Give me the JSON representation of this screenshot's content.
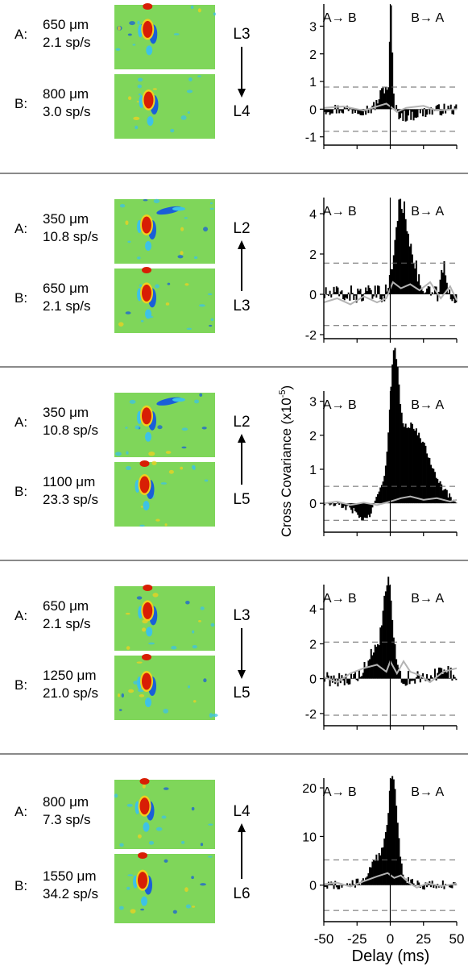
{
  "figure": {
    "ylabel": "Cross Covariance (x10",
    "ylabel_exp": "-5",
    "ylabel_close": ")",
    "xlabel": "Delay (ms)",
    "dir_ab": "A→ B",
    "dir_ba": "B→ A"
  },
  "colors": {
    "rf_background": "#7fd65a",
    "rf_red": "#d81e05",
    "rf_blue": "#1a5fd8",
    "rf_yellow": "#f0d020",
    "rf_cyan": "#3ec2e6",
    "histogram": "#000000",
    "shuffle_line": "#b4b4b4",
    "threshold": "#666666",
    "separator": "#444444"
  },
  "rows": [
    {
      "neuron_a": {
        "tag": "A:",
        "depth": "650 μm",
        "rate": "2.1 sp/s"
      },
      "neuron_b": {
        "tag": "B:",
        "depth": "800 μm",
        "rate": "3.0 sp/s"
      },
      "layer_top": "L3",
      "layer_bottom": "L4",
      "arrow": "down"
    },
    {
      "neuron_a": {
        "tag": "A:",
        "depth": "350 μm",
        "rate": "10.8 sp/s"
      },
      "neuron_b": {
        "tag": "B:",
        "depth": "650 μm",
        "rate": "2.1 sp/s"
      },
      "layer_top": "L2",
      "layer_bottom": "L3",
      "arrow": "up"
    },
    {
      "neuron_a": {
        "tag": "A:",
        "depth": "350 μm",
        "rate": "10.8 sp/s"
      },
      "neuron_b": {
        "tag": "B:",
        "depth": "1100 μm",
        "rate": "23.3 sp/s"
      },
      "layer_top": "L2",
      "layer_bottom": "L5",
      "arrow": "up"
    },
    {
      "neuron_a": {
        "tag": "A:",
        "depth": "650 μm",
        "rate": "2.1 sp/s"
      },
      "neuron_b": {
        "tag": "B:",
        "depth": "1250 μm",
        "rate": "21.0 sp/s"
      },
      "layer_top": "L3",
      "layer_bottom": "L5",
      "arrow": "down"
    },
    {
      "neuron_a": {
        "tag": "A:",
        "depth": "800 μm",
        "rate": "7.3 sp/s"
      },
      "neuron_b": {
        "tag": "B:",
        "depth": "1550 μm",
        "rate": "34.2 sp/s"
      },
      "layer_top": "L4",
      "layer_bottom": "L6",
      "arrow": "up"
    }
  ],
  "chart_data": [
    {
      "type": "bar",
      "xlim": [
        -50,
        50
      ],
      "ylim": [
        -1.3,
        3.8
      ],
      "xticks": [
        -50,
        -25,
        0,
        25,
        50
      ],
      "yticks": [
        -1,
        0,
        1,
        2,
        3
      ],
      "threshold": [
        0.8,
        -0.8
      ],
      "shape": {
        "pos": [
          [
            3.2,
            0.5,
            0.9
          ],
          [
            0.9,
            -3.5,
            4.5
          ]
        ],
        "neg": [
          [
            -0.25,
            10,
            12
          ]
        ],
        "noise": 0.22
      },
      "shuffle": [
        [
          -50,
          0.05
        ],
        [
          -35,
          0.1
        ],
        [
          -20,
          -0.05
        ],
        [
          -10,
          0.1
        ],
        [
          -3,
          0.2
        ],
        [
          0,
          0.1
        ],
        [
          5,
          -0.1
        ],
        [
          12,
          0.05
        ],
        [
          25,
          0.12
        ],
        [
          35,
          -0.05
        ],
        [
          50,
          0.0
        ]
      ]
    },
    {
      "type": "bar",
      "xlim": [
        -50,
        50
      ],
      "ylim": [
        -2.2,
        4.8
      ],
      "xticks": [
        -50,
        -25,
        0,
        25,
        50
      ],
      "yticks": [
        -2,
        0,
        2,
        4
      ],
      "threshold": [
        1.55,
        -1.55
      ],
      "shape": {
        "pos": [
          [
            3.6,
            7,
            4
          ],
          [
            2.2,
            14,
            5
          ],
          [
            1.5,
            40,
            1.5
          ]
        ],
        "neg": [],
        "noise": 0.45
      },
      "shuffle": [
        [
          -50,
          -0.4
        ],
        [
          -40,
          -0.2
        ],
        [
          -30,
          -0.5
        ],
        [
          -20,
          -0.1
        ],
        [
          -10,
          -0.4
        ],
        [
          -3,
          -0.2
        ],
        [
          2,
          0.6
        ],
        [
          8,
          0.3
        ],
        [
          15,
          0.5
        ],
        [
          22,
          0.2
        ],
        [
          30,
          0.6
        ],
        [
          38,
          -0.2
        ],
        [
          45,
          0.4
        ],
        [
          50,
          -0.3
        ]
      ]
    },
    {
      "type": "bar",
      "xlim": [
        -50,
        50
      ],
      "ylim": [
        -0.85,
        3.3
      ],
      "xticks": [
        -50,
        -25,
        0,
        25,
        50
      ],
      "yticks": [
        0,
        1,
        2,
        3
      ],
      "threshold": [
        0.5,
        -0.5
      ],
      "shape": {
        "pos": [
          [
            2.9,
            3,
            3
          ],
          [
            2.1,
            12,
            12
          ],
          [
            0.6,
            28,
            10
          ]
        ],
        "neg": [
          [
            -0.5,
            -18,
            6
          ],
          [
            -0.1,
            -30,
            10
          ]
        ],
        "noise": 0.1
      },
      "shuffle": [
        [
          -50,
          0.0
        ],
        [
          -40,
          0.05
        ],
        [
          -30,
          -0.05
        ],
        [
          -20,
          0.02
        ],
        [
          -10,
          -0.05
        ],
        [
          0,
          0.05
        ],
        [
          8,
          0.15
        ],
        [
          15,
          0.2
        ],
        [
          25,
          0.1
        ],
        [
          35,
          0.15
        ],
        [
          45,
          0.05
        ],
        [
          50,
          0.1
        ]
      ]
    },
    {
      "type": "bar",
      "xlim": [
        -50,
        50
      ],
      "ylim": [
        -2.7,
        5.4
      ],
      "xticks": [
        -50,
        -25,
        0,
        25,
        50
      ],
      "yticks": [
        -2,
        0,
        2,
        4
      ],
      "threshold": [
        2.1,
        -2.1
      ],
      "shape": {
        "pos": [
          [
            4.2,
            -1.5,
            3
          ],
          [
            2.0,
            -8,
            7
          ],
          [
            0.7,
            40,
            4
          ]
        ],
        "neg": [],
        "noise": 0.45
      },
      "shuffle": [
        [
          -50,
          0.1
        ],
        [
          -40,
          -0.2
        ],
        [
          -30,
          0.3
        ],
        [
          -20,
          0.6
        ],
        [
          -10,
          0.8
        ],
        [
          -3,
          0.4
        ],
        [
          0,
          1.0
        ],
        [
          5,
          0.3
        ],
        [
          10,
          1.0
        ],
        [
          15,
          0.4
        ],
        [
          22,
          0.2
        ],
        [
          30,
          -0.2
        ],
        [
          40,
          0.4
        ],
        [
          50,
          0.6
        ]
      ]
    },
    {
      "type": "bar",
      "xlim": [
        -50,
        50
      ],
      "ylim": [
        -7.5,
        22
      ],
      "xticks": [
        -50,
        -25,
        0,
        25,
        50
      ],
      "yticks": [
        0,
        10,
        20
      ],
      "threshold": [
        5.2,
        -5.2
      ],
      "shape": {
        "pos": [
          [
            17.5,
            2,
            3
          ],
          [
            7,
            -4,
            9
          ]
        ],
        "neg": [],
        "noise": 1.0
      },
      "shuffle": [
        [
          -50,
          0.2
        ],
        [
          -40,
          0.5
        ],
        [
          -30,
          -0.3
        ],
        [
          -20,
          0.8
        ],
        [
          -10,
          1.8
        ],
        [
          -2,
          2.5
        ],
        [
          3,
          1.5
        ],
        [
          8,
          2.0
        ],
        [
          14,
          0.5
        ],
        [
          20,
          -0.5
        ],
        [
          28,
          0.4
        ],
        [
          38,
          -0.2
        ],
        [
          50,
          0.3
        ]
      ]
    }
  ]
}
